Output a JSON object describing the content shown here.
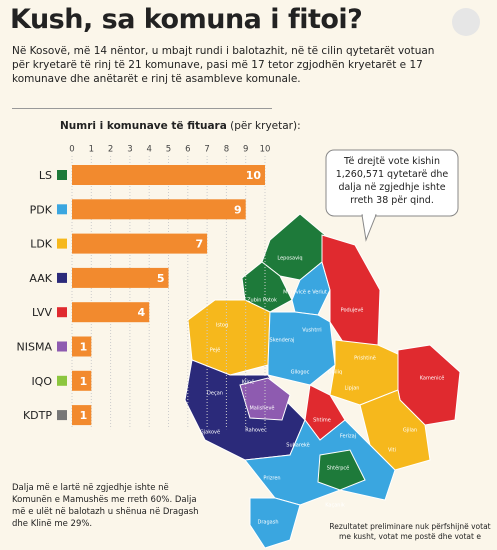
{
  "header": {
    "title": "Kush, sa komuna i fitoi?",
    "intro": "Në Kosovë, më 14 nëntor, u mbajt rundi i balotazhit, në të cilin qytetarët votuan për kryetarë të rinj të 21 komunave, pasi më 17 tetor zgjodhën kryetarët e 17 komunave dhe anëtarët e rinj të asambleve komunale."
  },
  "chart_data": {
    "type": "bar",
    "orientation": "horizontal",
    "title": "Numri i komunave të fituara",
    "subtitle": "(për kryetar):",
    "categories": [
      "LS",
      "PDK",
      "LDK",
      "AAK",
      "LVV",
      "NISMA",
      "IQO",
      "KDTP"
    ],
    "values": [
      10,
      9,
      7,
      5,
      4,
      1,
      1,
      1
    ],
    "color": "#f28a2e",
    "marker_colors": [
      "#1e7a3a",
      "#3aa6e0",
      "#f6b81c",
      "#2b2a7a",
      "#e02a2f",
      "#8e5bb0",
      "#8cc63f",
      "#777777"
    ],
    "xlim": [
      0,
      10
    ],
    "xticks": [
      0,
      1,
      2,
      3,
      4,
      5,
      6,
      7,
      8,
      9,
      10
    ],
    "grid": true
  },
  "callout": "Të drejtë vote kishin 1,260,571 qytetarë dhe dalja në zgjedhje ishte rreth 38 për qind.",
  "notes": {
    "turnout": "Dalja më e lartë në zgjedhje ishte në Komunën e Mamushës me rreth 60%. Dalja më e ulët në balotazh u shënua në Dragash dhe Klinë me 29%.",
    "disclaimer": "Rezultatet preliminare nuk përfshijnë votat me kusht, votat me postë dhe votat e"
  },
  "map": {
    "labels": [
      "Leposaviq",
      "Zubin Potok",
      "Mitrovicë e Veriut",
      "Podujevë",
      "Vushtrri",
      "Skenderaj",
      "Istog",
      "Pejë",
      "Klinë",
      "Gllogoc",
      "Prishtinë",
      "Obiliq",
      "Lipjan",
      "Gjilan",
      "Kamenicë",
      "Deçan",
      "Gjakovë",
      "Rahovec",
      "Malishevë",
      "Suharekë",
      "Shtime",
      "Ferizaj",
      "Viti",
      "Prizren",
      "Shtërpcë",
      "Kaçanik",
      "Dragash"
    ]
  }
}
